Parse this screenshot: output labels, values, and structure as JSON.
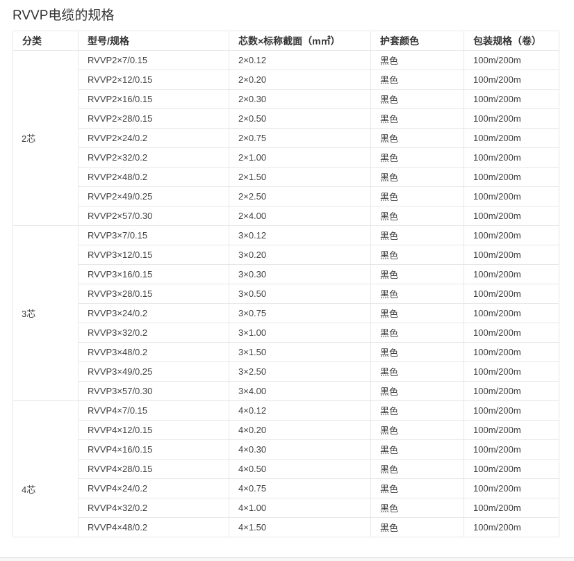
{
  "page": {
    "title": "RVVP电缆的规格"
  },
  "colors": {
    "header_text": "#333333",
    "cell_text": "#404040",
    "table_border": "#e7e7e7",
    "bottom_strip": "#f7f7f7"
  },
  "table": {
    "headers": [
      "分类",
      "型号/规格",
      "芯数×标称截面（m㎡）",
      "护套颜色",
      "包装规格（卷）"
    ],
    "groups": [
      {
        "category": "2芯",
        "rows": [
          [
            "RVVP2×7/0.15",
            "2×0.12",
            "黑色",
            "100m/200m"
          ],
          [
            "RVVP2×12/0.15",
            "2×0.20",
            "黑色",
            "100m/200m"
          ],
          [
            "RVVP2×16/0.15",
            "2×0.30",
            "黑色",
            "100m/200m"
          ],
          [
            "RVVP2×28/0.15",
            "2×0.50",
            "黑色",
            "100m/200m"
          ],
          [
            "RVVP2×24/0.2",
            "2×0.75",
            "黑色",
            "100m/200m"
          ],
          [
            "RVVP2×32/0.2",
            "2×1.00",
            "黑色",
            "100m/200m"
          ],
          [
            "RVVP2×48/0.2",
            "2×1.50",
            "黑色",
            "100m/200m"
          ],
          [
            "RVVP2×49/0.25",
            "2×2.50",
            "黑色",
            "100m/200m"
          ],
          [
            "RVVP2×57/0.30",
            "2×4.00",
            "黑色",
            "100m/200m"
          ]
        ]
      },
      {
        "category": "3芯",
        "rows": [
          [
            "RVVP3×7/0.15",
            "3×0.12",
            "黑色",
            "100m/200m"
          ],
          [
            "RVVP3×12/0.15",
            "3×0.20",
            "黑色",
            "100m/200m"
          ],
          [
            "RVVP3×16/0.15",
            "3×0.30",
            "黑色",
            "100m/200m"
          ],
          [
            "RVVP3×28/0.15",
            "3×0.50",
            "黑色",
            "100m/200m"
          ],
          [
            "RVVP3×24/0.2",
            "3×0.75",
            "黑色",
            "100m/200m"
          ],
          [
            "RVVP3×32/0.2",
            "3×1.00",
            "黑色",
            "100m/200m"
          ],
          [
            "RVVP3×48/0.2",
            "3×1.50",
            "黑色",
            "100m/200m"
          ],
          [
            "RVVP3×49/0.25",
            "3×2.50",
            "黑色",
            "100m/200m"
          ],
          [
            "RVVP3×57/0.30",
            "3×4.00",
            "黑色",
            "100m/200m"
          ]
        ]
      },
      {
        "category": "4芯",
        "rows": [
          [
            "RVVP4×7/0.15",
            "4×0.12",
            "黑色",
            "100m/200m"
          ],
          [
            "RVVP4×12/0.15",
            "4×0.20",
            "黑色",
            "100m/200m"
          ],
          [
            "RVVP4×16/0.15",
            "4×0.30",
            "黑色",
            "100m/200m"
          ],
          [
            "RVVP4×28/0.15",
            "4×0.50",
            "黑色",
            "100m/200m"
          ],
          [
            "RVVP4×24/0.2",
            "4×0.75",
            "黑色",
            "100m/200m"
          ],
          [
            "RVVP4×32/0.2",
            "4×1.00",
            "黑色",
            "100m/200m"
          ],
          [
            "RVVP4×48/0.2",
            "4×1.50",
            "黑色",
            "100m/200m"
          ]
        ]
      }
    ]
  }
}
